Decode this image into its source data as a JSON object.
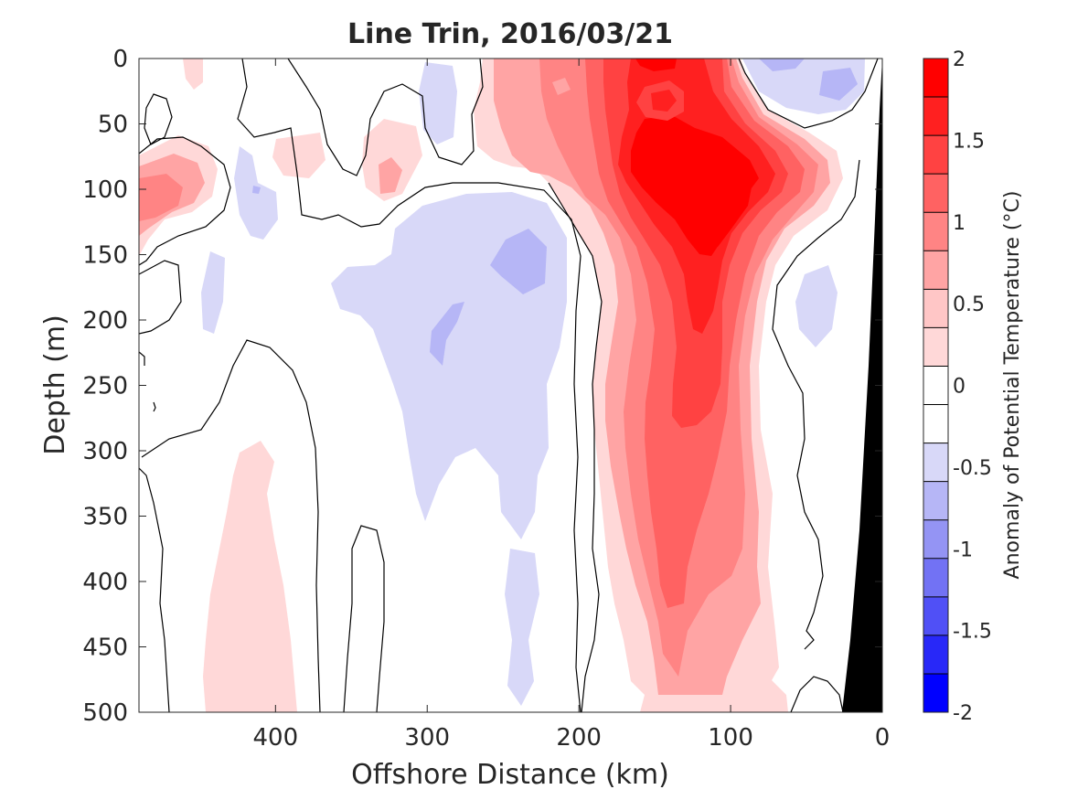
{
  "chart_data": {
    "type": "heatmap",
    "title": "Line Trin, 2016/03/21",
    "xlabel": "Offshore Distance (km)",
    "ylabel": "Depth (m)",
    "xlim": [
      490,
      0
    ],
    "ylim": [
      0,
      500
    ],
    "x_reversed": true,
    "y_reversed": true,
    "x_ticks": [
      400,
      300,
      200,
      100,
      0
    ],
    "x_tick_labels": [
      "400",
      "300",
      "200",
      "100",
      "0"
    ],
    "y_ticks": [
      0,
      50,
      100,
      150,
      200,
      250,
      300,
      350,
      400,
      450,
      500
    ],
    "y_tick_labels": [
      "0",
      "50",
      "100",
      "150",
      "200",
      "250",
      "300",
      "350",
      "400",
      "450",
      "500"
    ],
    "colorbar": {
      "label": "Anomaly of Potential Temperature (°C)",
      "range": [
        -2,
        2
      ],
      "step": 0.25,
      "tick_values": [
        2,
        1.5,
        1,
        0.5,
        0,
        -0.5,
        -1,
        -1.5,
        -2
      ],
      "tick_labels": [
        "2",
        "1.5",
        "1",
        "0.5",
        "0",
        "-0.5",
        "-1",
        "-1.5",
        "-2"
      ],
      "colors": [
        "#ff0000",
        "#ff2020",
        "#ff4242",
        "#ff6262",
        "#ff8484",
        "#ffa4a4",
        "#ffc6c6",
        "#ffd8d8",
        "#ffffff",
        "#ffffff",
        "#d8d8f8",
        "#b6b6f6",
        "#9494f4",
        "#7272f4",
        "#5050f6",
        "#2828f8",
        "#0000ff"
      ]
    },
    "grid": false,
    "legend": "colorbar-right",
    "features": [
      {
        "name": "warm anomaly core",
        "x_center_km": 115,
        "depth_center_m": 110,
        "max_anomaly": 2.0
      },
      {
        "name": "warm tongue",
        "x_range_km": [
          200,
          70
        ],
        "depth_range_m": [
          0,
          500
        ],
        "anomaly": 0.5
      },
      {
        "name": "cool anomaly",
        "x_center_km": 290,
        "depth_range_m": [
          100,
          350
        ],
        "anomaly": -0.5
      },
      {
        "name": "weak warm patch",
        "x_center_km": 410,
        "depth_range_m": [
          290,
          500
        ],
        "anomaly": 0.25
      },
      {
        "name": "bathymetry",
        "fill": "#000000",
        "x_range_km": [
          25,
          0
        ]
      }
    ]
  }
}
